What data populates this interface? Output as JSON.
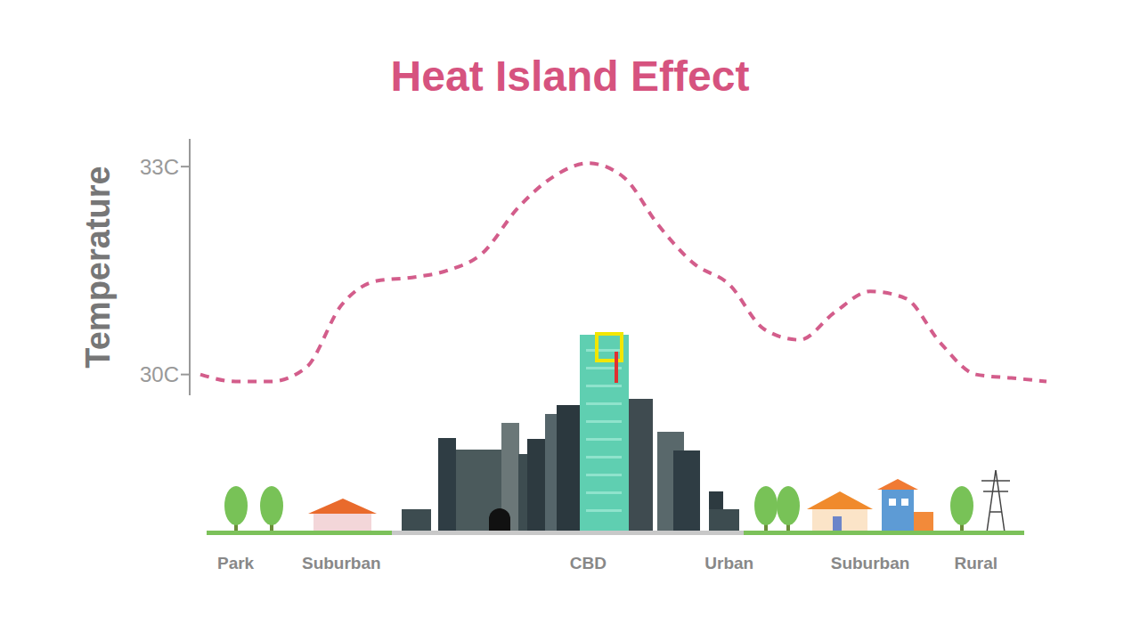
{
  "chart_data": {
    "type": "line",
    "title": "Heat Island Effect",
    "y_label": "Temperature",
    "categories": [
      null,
      "Park",
      null,
      null,
      "Suburban",
      null,
      null,
      null,
      null,
      null,
      null,
      "CBD",
      null,
      null,
      null,
      "Urban",
      null,
      null,
      null,
      "Suburban",
      null,
      null,
      "Rural",
      null,
      null
    ],
    "values": [
      30.0,
      29.9,
      29.9,
      30.1,
      31.0,
      31.35,
      31.4,
      31.5,
      31.75,
      32.4,
      32.85,
      33.05,
      32.85,
      32.15,
      31.6,
      31.3,
      30.65,
      30.5,
      30.9,
      31.2,
      31.1,
      30.45,
      30.0,
      29.95,
      29.9
    ],
    "color": "#d35d8b",
    "line_style": "dashed",
    "ylim": [
      29.7,
      33.4
    ],
    "yticks": [
      {
        "value": 30,
        "label": "30C"
      },
      {
        "value": 33,
        "label": "33C"
      }
    ],
    "grid": false
  }
}
